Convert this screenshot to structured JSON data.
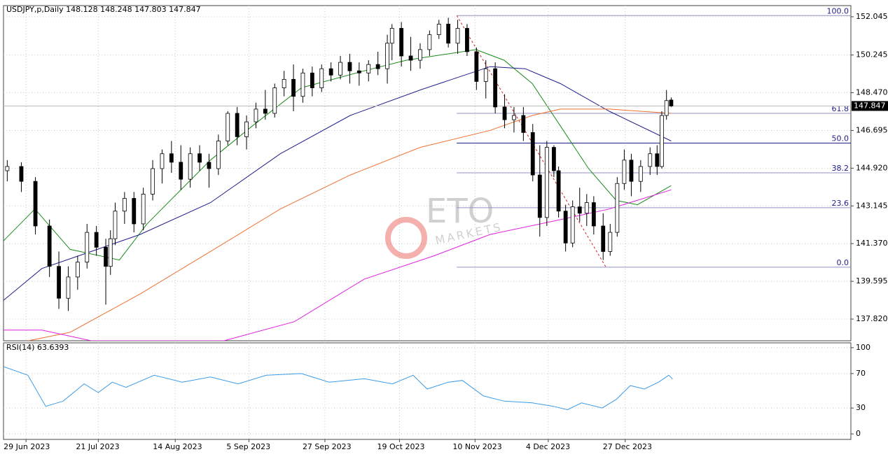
{
  "chart_data": [
    {
      "type": "candlestick",
      "title": "USDJPY,p,Daily  148.128 148.248 147.803 147.847",
      "xlim": [
        -4.8,
        175.8
      ],
      "ylim": [
        136.8,
        152.57
      ],
      "yticks": [
        152.045,
        150.245,
        {
          "value": 148.47,
          "label": "148.470"
        },
        146.695,
        {
          "value": 144.92,
          "label": "144.920"
        },
        143.145,
        {
          "value": 141.37,
          "label": "141.370"
        },
        139.595,
        {
          "value": 137.82,
          "label": "137.820"
        }
      ],
      "grid": true,
      "last_price": 147.847,
      "up_color": "#ffffff",
      "down_color": "#000000",
      "candles": {
        "x": [
          -4,
          -1,
          2,
          5,
          7,
          9,
          11,
          13,
          15,
          17,
          18,
          19,
          21,
          23,
          25,
          27,
          29,
          31,
          33,
          35,
          37,
          39,
          41,
          43,
          45,
          47,
          49,
          51,
          53,
          55,
          57,
          59,
          61,
          63,
          65,
          67,
          69,
          71,
          73,
          75,
          77,
          78,
          80,
          82,
          84,
          86,
          88,
          90,
          92,
          94,
          96,
          98,
          100,
          102,
          104,
          106,
          108,
          109.5,
          111,
          112.5,
          113.5,
          115,
          116.5,
          118,
          119.5,
          121,
          123,
          124.5,
          126,
          127.5,
          129,
          131,
          133,
          134.5,
          135.5,
          136.5,
          137.5
        ],
        "open": [
          144.8,
          145.0,
          144.3,
          142.2,
          140.3,
          138.8,
          139.8,
          140.5,
          141.9,
          141.2,
          140.3,
          141.6,
          142.9,
          143.5,
          142.3,
          143.7,
          144.9,
          145.6,
          145.2,
          144.4,
          145.6,
          145.2,
          144.9,
          146.2,
          147.5,
          146.4,
          147.1,
          147.7,
          147.5,
          148.7,
          149.1,
          148.3,
          149.4,
          148.7,
          149.6,
          149.3,
          149.9,
          149.5,
          149.4,
          149.8,
          149.6,
          150.8,
          151.5,
          150.2,
          150.0,
          150.5,
          151.2,
          151.7,
          150.8,
          151.5,
          150.4,
          149.0,
          149.6,
          147.8,
          147.2,
          147.4,
          146.6,
          144.6,
          142.6,
          145.9,
          144.8,
          142.9,
          141.4,
          143.1,
          142.8,
          143.3,
          142.2,
          141.0,
          141.9,
          144.2,
          145.3,
          144.3,
          145.0,
          145.6,
          145.0,
          147.4,
          148.128
        ],
        "high": [
          145.3,
          145.2,
          144.5,
          142.5,
          141.0,
          140.3,
          140.8,
          142.3,
          142.2,
          141.6,
          142.0,
          143.3,
          143.8,
          143.8,
          144.0,
          145.3,
          145.8,
          146.2,
          146.0,
          145.9,
          146.0,
          145.6,
          146.5,
          147.6,
          147.8,
          147.4,
          148.0,
          148.6,
          148.9,
          149.5,
          149.8,
          149.6,
          149.7,
          149.8,
          149.9,
          150.2,
          150.3,
          149.9,
          150.0,
          150.4,
          151.2,
          151.7,
          151.8,
          151.1,
          150.8,
          151.4,
          151.9,
          152.0,
          151.9,
          151.7,
          150.6,
          150.0,
          149.9,
          148.4,
          147.8,
          147.8,
          147.0,
          146.0,
          146.2,
          146.0,
          145.0,
          143.2,
          143.4,
          144.0,
          143.7,
          143.6,
          142.8,
          142.3,
          144.5,
          145.8,
          145.6,
          145.3,
          145.9,
          146.0,
          147.6,
          148.6,
          148.248
        ],
        "low": [
          144.3,
          143.8,
          141.8,
          139.8,
          138.3,
          138.2,
          139.2,
          140.2,
          140.8,
          138.5,
          139.9,
          141.3,
          142.3,
          141.9,
          142.0,
          143.4,
          144.2,
          144.7,
          143.9,
          144.0,
          144.8,
          144.0,
          144.6,
          146.0,
          146.0,
          145.8,
          146.8,
          147.2,
          147.3,
          148.3,
          147.6,
          148.0,
          148.3,
          148.5,
          149.0,
          149.1,
          148.9,
          148.8,
          149.0,
          149.3,
          148.9,
          150.0,
          149.7,
          149.5,
          149.6,
          150.2,
          151.0,
          150.6,
          150.3,
          150.2,
          148.6,
          148.2,
          147.5,
          146.8,
          146.6,
          146.2,
          144.3,
          141.7,
          142.2,
          144.5,
          142.6,
          141.0,
          141.2,
          142.4,
          142.2,
          141.8,
          140.6,
          140.8,
          141.7,
          143.9,
          143.6,
          143.8,
          144.6,
          144.6,
          144.9,
          147.2,
          147.803
        ],
        "close": [
          145.0,
          144.3,
          142.2,
          140.3,
          138.8,
          139.8,
          140.5,
          141.9,
          141.2,
          140.3,
          141.6,
          142.9,
          143.5,
          142.3,
          143.7,
          144.9,
          145.6,
          145.2,
          144.4,
          145.6,
          145.2,
          144.9,
          146.2,
          147.5,
          146.4,
          147.1,
          147.7,
          147.5,
          148.7,
          149.1,
          148.3,
          149.4,
          148.7,
          149.6,
          149.3,
          149.9,
          149.5,
          149.4,
          149.8,
          149.6,
          150.8,
          151.5,
          150.2,
          150.0,
          150.5,
          151.2,
          151.7,
          150.8,
          151.5,
          150.4,
          149.0,
          149.6,
          147.8,
          147.2,
          147.4,
          146.6,
          144.6,
          142.6,
          145.9,
          144.8,
          142.9,
          141.4,
          143.1,
          142.8,
          143.3,
          142.2,
          141.0,
          141.9,
          144.2,
          145.3,
          144.3,
          145.0,
          145.6,
          145.0,
          147.4,
          148.1,
          147.847
        ]
      },
      "series": [
        {
          "color": "#1a8a1a",
          "x": [
            -4.8,
            1.9,
            9.4,
            19.9,
            25.8,
            39.3,
            48.2,
            58.7,
            72.1,
            81.0,
            95.9,
            101.9,
            107.9,
            113.9,
            119.9,
            125.8,
            130.3,
            137.5
          ],
          "values": [
            141.5,
            143.0,
            141.1,
            140.6,
            142.3,
            145.3,
            146.9,
            148.7,
            149.5,
            150.0,
            150.5,
            150.0,
            148.9,
            146.9,
            144.9,
            143.4,
            143.2,
            144.1
          ]
        },
        {
          "color": "#1e1e8c",
          "x": [
            -4.8,
            3.4,
            13.9,
            24.3,
            39.3,
            54.2,
            69.1,
            84.0,
            98.9,
            106.4,
            113.9,
            124.3,
            137.5
          ],
          "values": [
            138.7,
            140.2,
            141.0,
            141.8,
            143.3,
            145.6,
            147.4,
            148.6,
            149.7,
            149.6,
            148.9,
            147.6,
            146.2
          ]
        },
        {
          "color": "#f07030",
          "x": [
            0.5,
            9.4,
            24.3,
            39.3,
            54.2,
            69.1,
            84.0,
            98.9,
            107.9,
            113.9,
            124.3,
            137.5
          ],
          "values": [
            136.8,
            137.2,
            139.0,
            141.0,
            143.0,
            144.6,
            145.9,
            146.7,
            147.4,
            147.7,
            147.7,
            147.5
          ]
        },
        {
          "color": "#e020e0",
          "x": [
            -4.8,
            3.4,
            13.9,
            42.2,
            57.2,
            72.1,
            87.0,
            98.9,
            113.9,
            124.3,
            137.5
          ],
          "values": [
            137.3,
            137.3,
            136.8,
            136.8,
            137.7,
            139.7,
            140.8,
            141.8,
            142.5,
            143.0,
            143.9
          ]
        }
      ],
      "fib_x": [
        91.8,
        123.6
      ],
      "fib_levels": [
        {
          "label": "100.0",
          "value": 152.1
        },
        {
          "label": "61.8",
          "value": 147.5
        },
        {
          "label": "50.0",
          "value": 146.1
        },
        {
          "label": "38.2",
          "value": 144.7
        },
        {
          "label": "23.6",
          "value": 143.06
        },
        {
          "label": "0.0",
          "value": 140.26
        }
      ],
      "watermark": {
        "text": "ETO",
        "subtext": "MARKETS"
      }
    },
    {
      "type": "line",
      "title": "RSI(14) 63.6393",
      "xlim": [
        -4.8,
        175.8
      ],
      "ylim": [
        -6.4,
        105.6
      ],
      "yticks": [
        100,
        70,
        30,
        0
      ],
      "xticks": [
        {
          "value": 0,
          "label": "29 Jun 2023"
        },
        {
          "value": 15.4,
          "label": "21 Jul 2023"
        },
        {
          "value": 31.8,
          "label": "14 Aug 2023"
        },
        {
          "value": 47.5,
          "label": "5 Sep 2023"
        },
        {
          "value": 63.7,
          "label": "27 Sep 2023"
        },
        {
          "value": 79.6,
          "label": "19 Oct 2023"
        },
        {
          "value": 95.7,
          "label": "10 Nov 2023"
        },
        {
          "value": 111.3,
          "label": "4 Dec 2023"
        },
        {
          "value": 127.7,
          "label": "27 Dec 2023"
        }
      ],
      "series": [
        {
          "color": "#3c9be6",
          "x": [
            -4.8,
            0.4,
            4.2,
            7.9,
            12.4,
            15.4,
            18.4,
            21.3,
            27.3,
            33.3,
            39.3,
            45.2,
            51.2,
            58.7,
            64.6,
            72.1,
            78.1,
            82.5,
            85.5,
            90.0,
            93.0,
            97.5,
            101.9,
            107.9,
            112.4,
            115.4,
            118.4,
            122.8,
            125.8,
            128.8,
            131.8,
            134.8,
            137.0,
            137.8
          ],
          "values": [
            78,
            68,
            32,
            38,
            58,
            48,
            60,
            54,
            68,
            60,
            66,
            58,
            68,
            70,
            60,
            64,
            58,
            68,
            52,
            60,
            62,
            44,
            38,
            36,
            32,
            28,
            36,
            30,
            40,
            56,
            52,
            60,
            68,
            63.6393
          ]
        }
      ]
    }
  ]
}
